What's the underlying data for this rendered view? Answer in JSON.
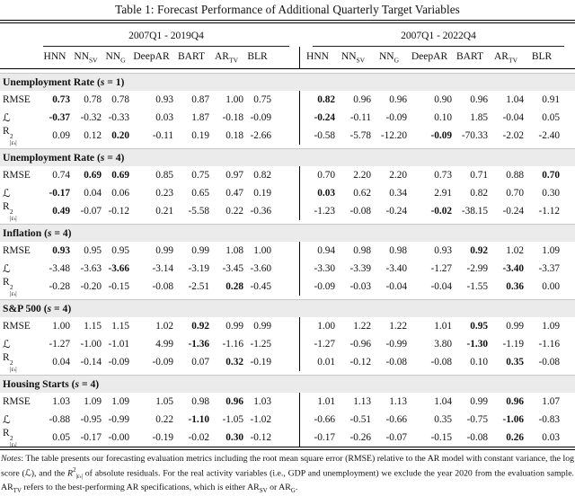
{
  "title": "Table 1: Forecast Performance of Additional Quarterly Target Variables",
  "panels": [
    {
      "span": "2007Q1 - 2019Q4"
    },
    {
      "span": "2007Q1 - 2022Q4"
    }
  ],
  "columns": [
    {
      "base": "HNN",
      "sub": ""
    },
    {
      "base": "NN",
      "sub": "SV"
    },
    {
      "base": "NN",
      "sub": "G"
    },
    {
      "base": "DeepAR",
      "sub": ""
    },
    {
      "base": "BART",
      "sub": ""
    },
    {
      "base": "AR",
      "sub": "TV"
    },
    {
      "base": "BLR",
      "sub": ""
    }
  ],
  "metrics": {
    "rmse": "RMSE",
    "logscore": "ℒ",
    "r2_main": "R",
    "r2_sup": "2",
    "r2_sub": "|εₜ|"
  },
  "sections": [
    {
      "title": "Unemployment Rate",
      "s": "1",
      "rows": [
        {
          "metric": "rmse",
          "left": [
            "0.73",
            "0.78",
            "0.78",
            "0.93",
            "0.87",
            "1.00",
            "0.75"
          ],
          "left_bold": [
            0
          ],
          "right": [
            "0.82",
            "0.96",
            "0.96",
            "0.90",
            "0.96",
            "1.04",
            "0.91"
          ],
          "right_bold": [
            0
          ]
        },
        {
          "metric": "logscore",
          "left": [
            "-0.37",
            "-0.32",
            "-0.33",
            "0.03",
            "1.87",
            "-0.18",
            "-0.09"
          ],
          "left_bold": [
            0
          ],
          "right": [
            "-0.24",
            "-0.11",
            "-0.09",
            "0.10",
            "1.85",
            "-0.04",
            "0.05"
          ],
          "right_bold": [
            0
          ]
        },
        {
          "metric": "r2",
          "left": [
            "0.09",
            "0.12",
            "0.20",
            "-0.11",
            "0.19",
            "0.18",
            "-2.66"
          ],
          "left_bold": [
            2
          ],
          "right": [
            "-0.58",
            "-5.78",
            "-12.20",
            "-0.09",
            "-70.33",
            "-2.02",
            "-2.40"
          ],
          "right_bold": [
            3
          ]
        }
      ]
    },
    {
      "title": "Unemployment Rate",
      "s": "4",
      "rows": [
        {
          "metric": "rmse",
          "left": [
            "0.74",
            "0.69",
            "0.69",
            "0.85",
            "0.75",
            "0.97",
            "0.82"
          ],
          "left_bold": [
            1,
            2
          ],
          "right": [
            "0.70",
            "2.20",
            "2.20",
            "0.73",
            "0.71",
            "0.88",
            "0.70"
          ],
          "right_bold": [
            6
          ]
        },
        {
          "metric": "logscore",
          "left": [
            "-0.17",
            "0.04",
            "0.06",
            "0.23",
            "0.65",
            "0.47",
            "0.19"
          ],
          "left_bold": [
            0
          ],
          "right": [
            "0.03",
            "0.62",
            "0.34",
            "2.91",
            "0.82",
            "0.70",
            "0.30"
          ],
          "right_bold": [
            0
          ]
        },
        {
          "metric": "r2",
          "left": [
            "0.49",
            "-0.07",
            "-0.12",
            "0.21",
            "-5.58",
            "0.22",
            "-0.36"
          ],
          "left_bold": [
            0
          ],
          "right": [
            "-1.23",
            "-0.08",
            "-0.24",
            "-0.02",
            "-38.15",
            "-0.24",
            "-1.12"
          ],
          "right_bold": [
            3
          ]
        }
      ]
    },
    {
      "title": "Inflation",
      "s": "4",
      "rows": [
        {
          "metric": "rmse",
          "left": [
            "0.93",
            "0.95",
            "0.95",
            "0.99",
            "0.99",
            "1.08",
            "1.00"
          ],
          "left_bold": [
            0
          ],
          "right": [
            "0.94",
            "0.98",
            "0.98",
            "0.93",
            "0.92",
            "1.02",
            "1.09"
          ],
          "right_bold": [
            4
          ]
        },
        {
          "metric": "logscore",
          "left": [
            "-3.48",
            "-3.63",
            "-3.66",
            "-3.14",
            "-3.19",
            "-3.45",
            "-3.60"
          ],
          "left_bold": [
            2
          ],
          "right": [
            "-3.30",
            "-3.39",
            "-3.40",
            "-1.27",
            "-2.99",
            "-3.40",
            "-3.37"
          ],
          "right_bold": [
            5
          ]
        },
        {
          "metric": "r2",
          "left": [
            "-0.28",
            "-0.20",
            "-0.15",
            "-0.08",
            "-2.51",
            "0.28",
            "-0.45"
          ],
          "left_bold": [
            5
          ],
          "right": [
            "-0.09",
            "-0.03",
            "-0.04",
            "-0.04",
            "-1.55",
            "0.36",
            "0.00"
          ],
          "right_bold": [
            5
          ]
        }
      ]
    },
    {
      "title": "S&P 500",
      "s": "4",
      "rows": [
        {
          "metric": "rmse",
          "left": [
            "1.00",
            "1.15",
            "1.15",
            "1.02",
            "0.92",
            "0.99",
            "0.99"
          ],
          "left_bold": [
            4
          ],
          "right": [
            "1.00",
            "1.22",
            "1.22",
            "1.01",
            "0.95",
            "0.99",
            "1.09"
          ],
          "right_bold": [
            4
          ]
        },
        {
          "metric": "logscore",
          "left": [
            "-1.27",
            "-1.00",
            "-1.01",
            "4.99",
            "-1.36",
            "-1.16",
            "-1.25"
          ],
          "left_bold": [
            4
          ],
          "right": [
            "-1.27",
            "-0.96",
            "-0.99",
            "3.80",
            "-1.30",
            "-1.19",
            "-1.16"
          ],
          "right_bold": [
            4
          ]
        },
        {
          "metric": "r2",
          "left": [
            "0.04",
            "-0.14",
            "-0.09",
            "-0.09",
            "0.07",
            "0.32",
            "-0.19"
          ],
          "left_bold": [
            5
          ],
          "right": [
            "0.01",
            "-0.12",
            "-0.08",
            "-0.08",
            "0.10",
            "0.35",
            "-0.08"
          ],
          "right_bold": [
            5
          ]
        }
      ]
    },
    {
      "title": "Housing Starts",
      "s": "4",
      "rows": [
        {
          "metric": "rmse",
          "left": [
            "1.03",
            "1.09",
            "1.09",
            "1.05",
            "0.98",
            "0.96",
            "1.03"
          ],
          "left_bold": [
            5
          ],
          "right": [
            "1.01",
            "1.13",
            "1.13",
            "1.04",
            "0.99",
            "0.96",
            "1.07"
          ],
          "right_bold": [
            5
          ]
        },
        {
          "metric": "logscore",
          "left": [
            "-0.88",
            "-0.95",
            "-0.99",
            "0.22",
            "-1.10",
            "-1.05",
            "-1.02"
          ],
          "left_bold": [
            4
          ],
          "right": [
            "-0.66",
            "-0.51",
            "-0.66",
            "0.35",
            "-0.75",
            "-1.06",
            "-0.83"
          ],
          "right_bold": [
            5
          ]
        },
        {
          "metric": "r2",
          "left": [
            "0.05",
            "-0.17",
            "-0.00",
            "-0.19",
            "-0.02",
            "0.30",
            "-0.12"
          ],
          "left_bold": [
            5
          ],
          "right": [
            "-0.17",
            "-0.26",
            "-0.07",
            "-0.15",
            "-0.08",
            "0.26",
            "0.03"
          ],
          "right_bold": [
            5
          ]
        }
      ]
    }
  ],
  "notes_segments": [
    {
      "text": "Notes",
      "italic": true
    },
    {
      "text": ": The table presents our forecasting evaluation metrics including the root mean square error (RMSE) relative to the AR model with constant variance, the log score ("
    },
    {
      "text": "ℒ"
    },
    {
      "text": "), and the "
    },
    {
      "text": "R",
      "italic": true
    },
    {
      "text": "2",
      "sup": true
    },
    {
      "text": "|εₜ|",
      "sub": true
    },
    {
      "text": " of absolute residuals. For the real activity variables (i.e., GDP and unemployment) we exclude the year 2020 from the evaluation sample. AR"
    },
    {
      "text": "TV",
      "sub": true
    },
    {
      "text": " refers to the best-performing AR specifications, which is either AR"
    },
    {
      "text": "SV",
      "sub": true
    },
    {
      "text": " or AR"
    },
    {
      "text": "G",
      "sub": true
    },
    {
      "text": "."
    }
  ]
}
